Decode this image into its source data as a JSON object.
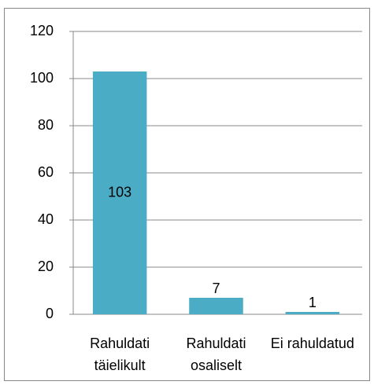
{
  "chart_data": {
    "type": "bar",
    "categories": [
      "Rahuldati täielikult",
      "Rahuldati osaliselt",
      "Ei rahuldatud"
    ],
    "values": [
      103,
      7,
      1
    ],
    "color": "#4bacc6",
    "ylim": [
      0,
      120
    ],
    "yticks": [
      0,
      20,
      40,
      60,
      80,
      100,
      120
    ],
    "grid": true
  }
}
